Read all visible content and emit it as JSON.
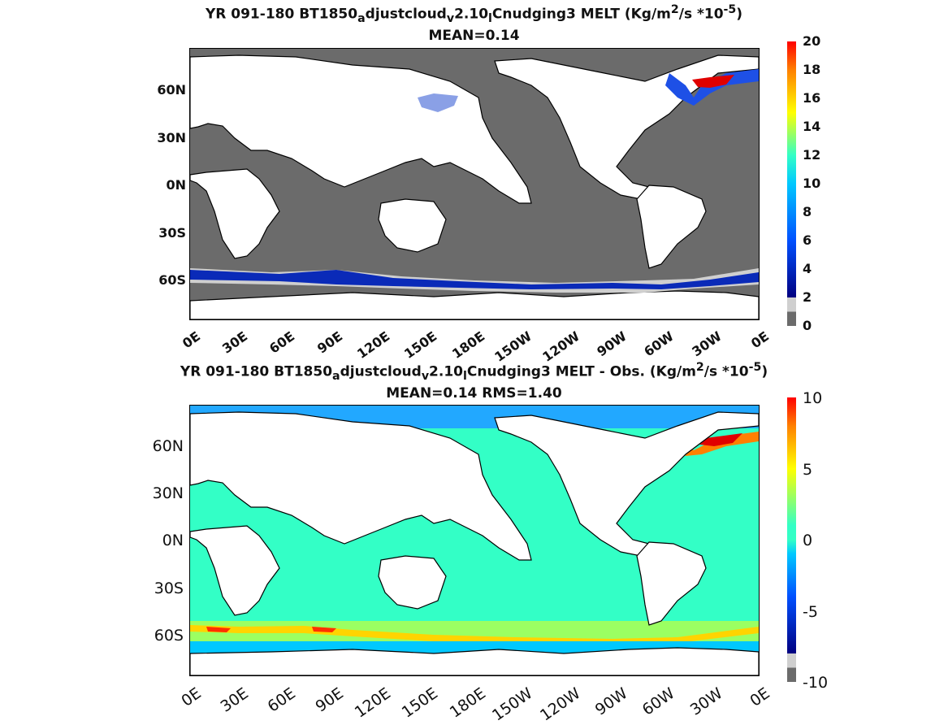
{
  "chart_data": [
    {
      "type": "heatmap",
      "title_main": "YR 091-180 BT1850",
      "title_sub1": "a",
      "title_mid": "djustcloud",
      "title_sub2": "v",
      "title_mid2": "2.10",
      "title_sub3": "l",
      "title_rest": "Cnudging3 MELT (Kg/m",
      "title_sup1": "2",
      "title_rest2": "/s   *10",
      "title_sup2": "-5",
      "title_end": ")",
      "subtitle": "MEAN=0.14",
      "lat_labels": [
        "60N",
        "30N",
        "0N",
        "30S",
        "60S"
      ],
      "lon_labels": [
        "0E",
        "30E",
        "60E",
        "90E",
        "120E",
        "150E",
        "180E",
        "150W",
        "120W",
        "90W",
        "60W",
        "30W",
        "0E"
      ],
      "colorbar_ticks": [
        "20",
        "18",
        "16",
        "14",
        "12",
        "10",
        "8",
        "6",
        "4",
        "2",
        "0"
      ],
      "clim": [
        0,
        20
      ],
      "colors": {
        "land": "#ffffff",
        "ocean_zero": "#6b6b6b",
        "low": "#cfcfcf"
      }
    },
    {
      "type": "heatmap",
      "title_main": "YR 091-180 BT1850",
      "title_sub1": "a",
      "title_mid": "djustcloud",
      "title_sub2": "v",
      "title_mid2": "2.10",
      "title_sub3": "l",
      "title_rest": "Cnudging3 MELT - Obs. (Kg/m",
      "title_sup1": "2",
      "title_rest2": "/s *10",
      "title_sup2": "-5",
      "title_end": ")",
      "subtitle": "MEAN=0.14   RMS=1.40",
      "lat_labels": [
        "60N",
        "30N",
        "0N",
        "30S",
        "60S"
      ],
      "lon_labels": [
        "0E",
        "30E",
        "60E",
        "90E",
        "120E",
        "150E",
        "180E",
        "150W",
        "120W",
        "90W",
        "60W",
        "30W",
        "0E"
      ],
      "colorbar_ticks": [
        "10",
        "5",
        "0",
        "-5",
        "-10"
      ],
      "clim": [
        -10,
        10
      ],
      "colors": {
        "land": "#ffffff",
        "ocean_zero": "#33ffc6"
      }
    }
  ]
}
